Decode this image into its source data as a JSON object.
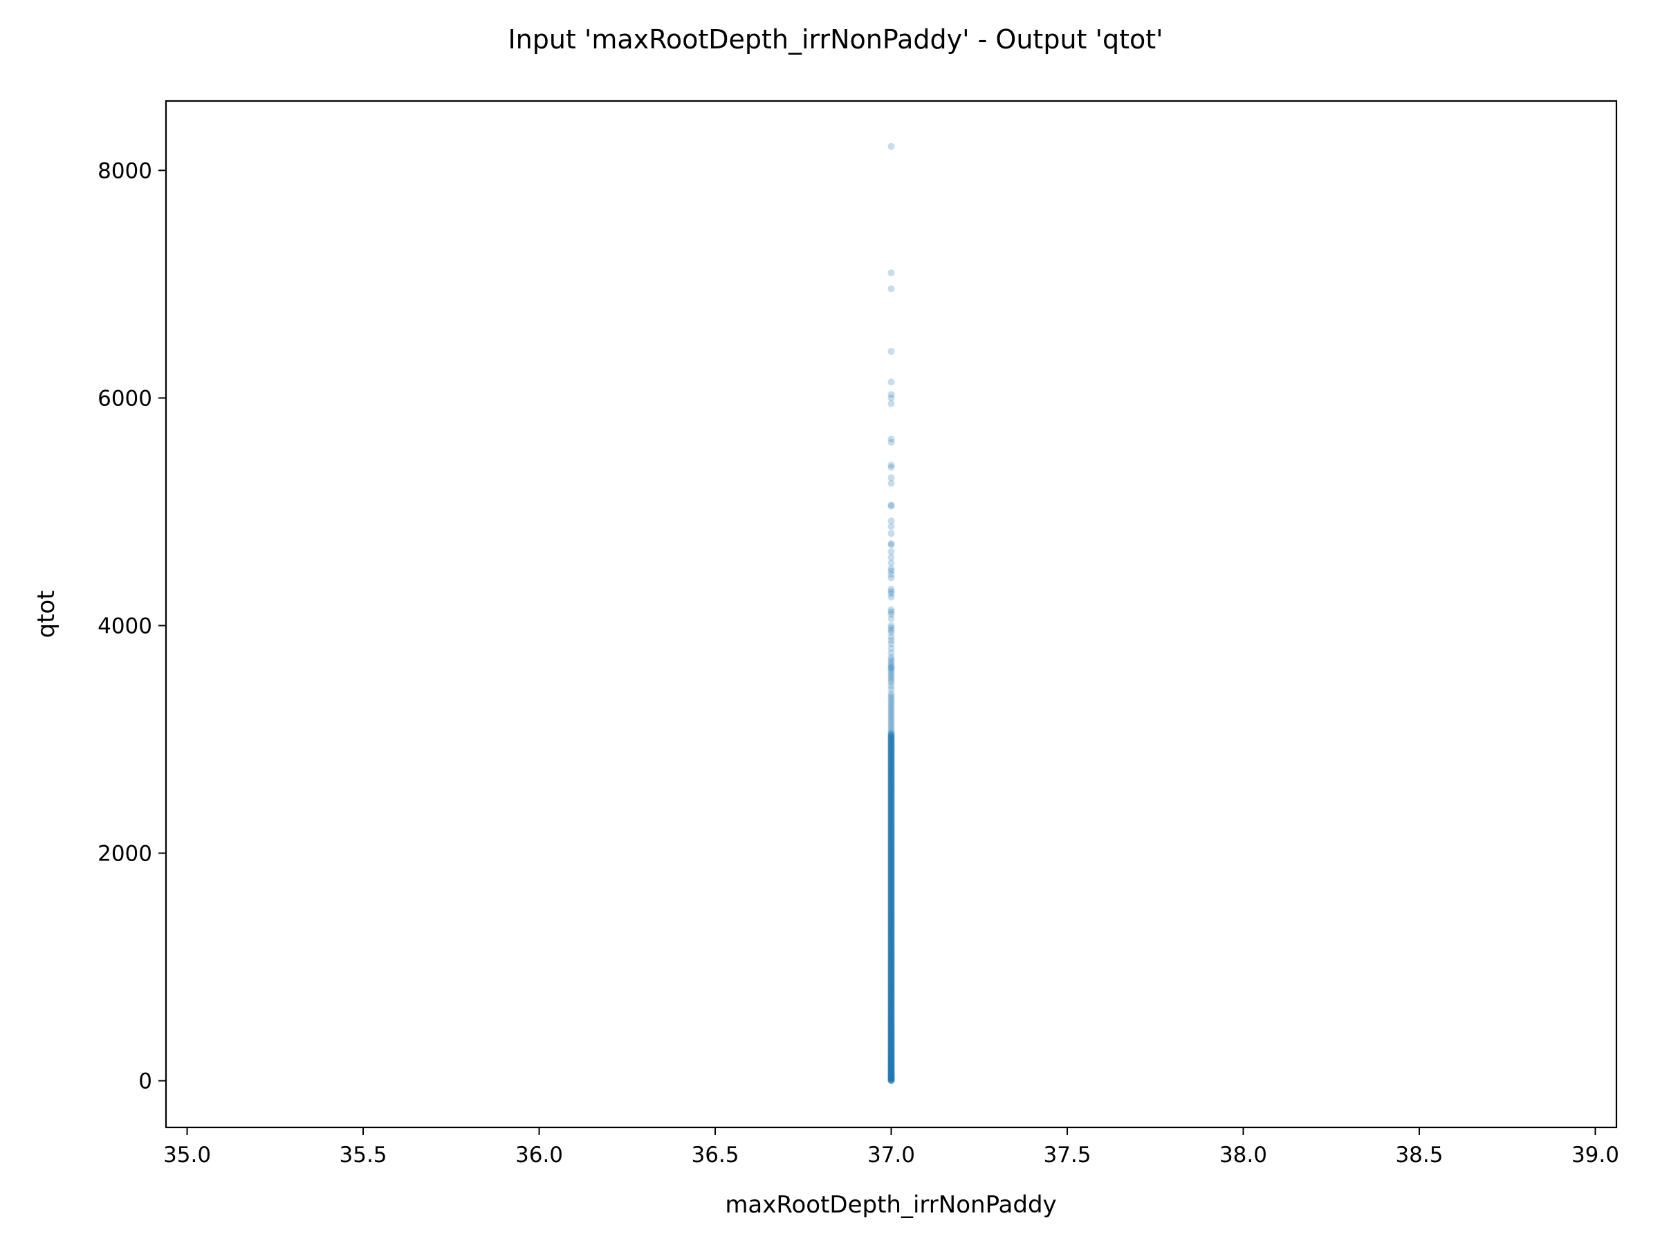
{
  "chart_data": {
    "type": "scatter",
    "title": "Input 'maxRootDepth_irrNonPaddy' - Output 'qtot'",
    "xlabel": "maxRootDepth_irrNonPaddy",
    "ylabel": "qtot",
    "xlim": [
      34.94,
      39.06
    ],
    "ylim": [
      -410,
      8610
    ],
    "xticks": [
      35.0,
      35.5,
      36.0,
      36.5,
      37.0,
      37.5,
      38.0,
      38.5,
      39.0
    ],
    "xtick_labels": [
      "35.0",
      "35.5",
      "36.0",
      "36.5",
      "37.0",
      "37.5",
      "38.0",
      "38.5",
      "39.0"
    ],
    "yticks": [
      0,
      2000,
      4000,
      6000,
      8000
    ],
    "ytick_labels": [
      "0",
      "2000",
      "4000",
      "6000",
      "8000"
    ],
    "grid": false,
    "marker_color": "#1f77b4",
    "marker_alpha": 0.25,
    "series": [
      {
        "x_constant": 37.0,
        "y": [
          8210,
          7100,
          6960,
          6410,
          6140,
          6030,
          6000,
          5950,
          5640,
          5610,
          5410,
          5390,
          5300,
          5250,
          5060,
          5050,
          4920,
          4870,
          4810,
          4720,
          4710,
          4650,
          4600,
          4550,
          4500,
          4480,
          4450,
          4420,
          4320,
          4300,
          4280,
          4250,
          4140,
          4120,
          4100,
          4060,
          4000,
          3980,
          3960,
          3940,
          3900,
          3870,
          3840,
          3800,
          3760,
          3720,
          3700,
          3680,
          3660,
          3640,
          3630,
          3620,
          3600,
          3580,
          3560,
          3540,
          3520,
          3500,
          3470,
          3440,
          3400,
          3380,
          3360,
          3340,
          3320,
          3300,
          3280,
          3260,
          3240,
          3220,
          3200,
          3180,
          3160,
          3140,
          3120,
          3100,
          3080,
          3060
        ],
        "dense_range": [
          0,
          3050
        ]
      }
    ]
  }
}
